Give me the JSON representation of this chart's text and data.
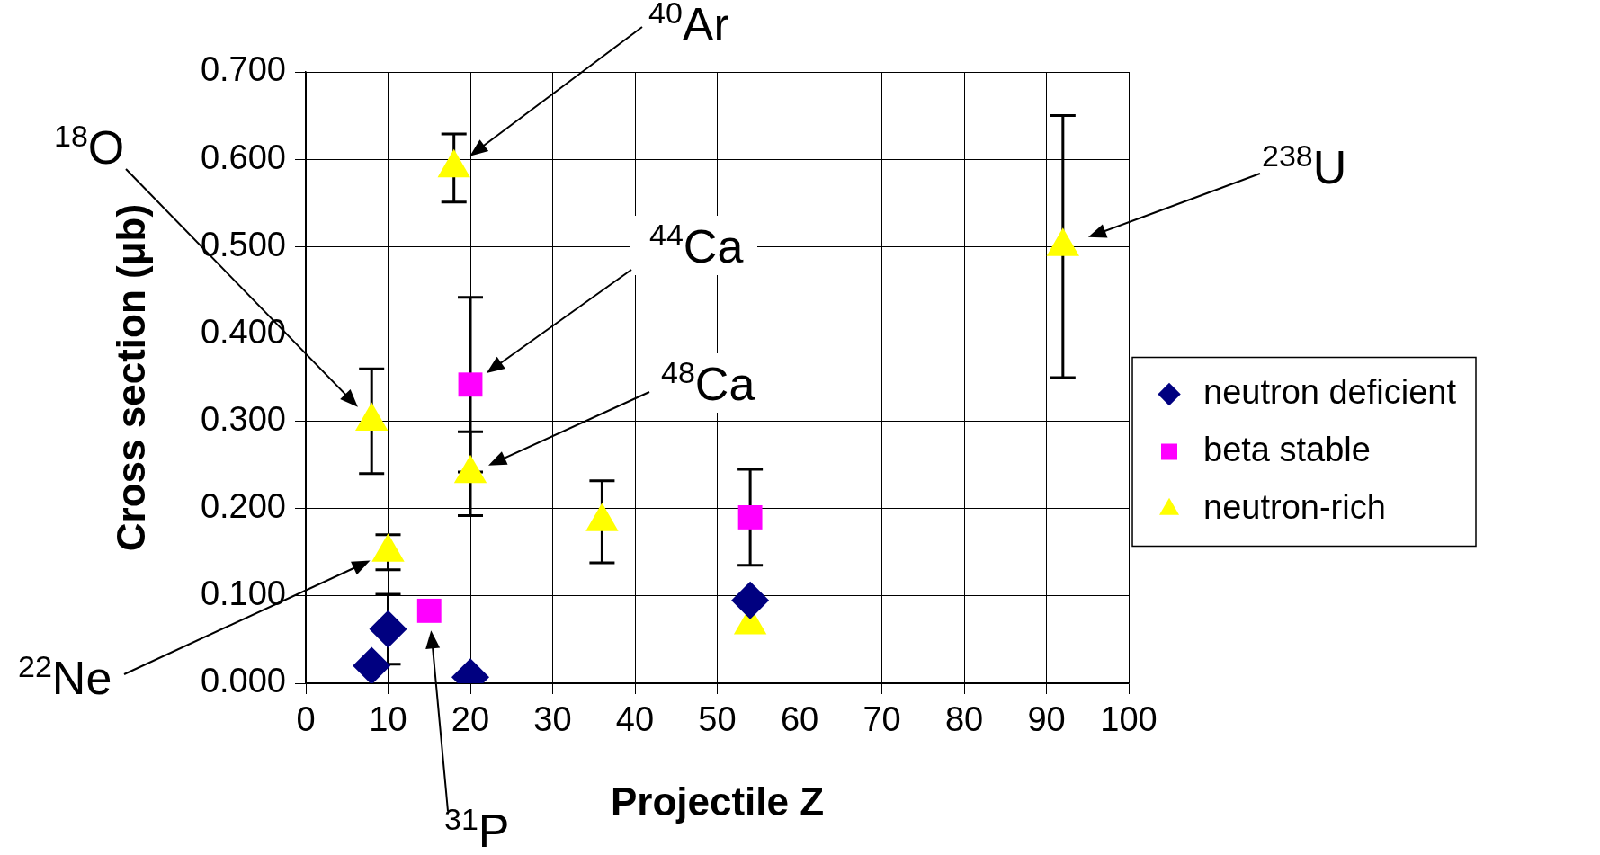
{
  "chart_data": {
    "type": "scatter",
    "xlabel": "Projectile Z",
    "ylabel": "Cross section (μb)",
    "xlim": [
      0,
      100
    ],
    "xticks": [
      0,
      10,
      20,
      30,
      40,
      50,
      60,
      70,
      80,
      90,
      100
    ],
    "ylim": [
      0,
      0.7
    ],
    "yticks": [
      {
        "value": 0,
        "label": "0.000"
      },
      {
        "value": 0.1,
        "label": "0.100"
      },
      {
        "value": 0.2,
        "label": "0.200"
      },
      {
        "value": 0.3,
        "label": "0.300"
      },
      {
        "value": 0.4,
        "label": "0.400"
      },
      {
        "value": 0.5,
        "label": "0.500"
      },
      {
        "value": 0.6,
        "label": "0.600"
      },
      {
        "value": 0.7,
        "label": "0.700"
      }
    ],
    "grid": true,
    "legend": "right",
    "series": [
      {
        "name": "neutron deficient",
        "color": "#000080",
        "marker": "diamond",
        "x": [
          8,
          10,
          20,
          54
        ],
        "values": [
          0.02,
          0.062,
          0.007,
          0.095
        ],
        "errors": [
          null,
          0.04,
          null,
          null
        ]
      },
      {
        "name": "beta stable",
        "color": "#ff00ff",
        "marker": "square",
        "x": [
          15,
          20,
          54
        ],
        "values": [
          0.083,
          0.342,
          0.19
        ],
        "errors": [
          null,
          0.1,
          0.055
        ]
      },
      {
        "name": "neutron-rich",
        "color": "#ffff00",
        "marker": "triangle",
        "x": [
          8,
          10,
          18,
          20,
          36,
          54,
          92
        ],
        "values": [
          0.3,
          0.15,
          0.59,
          0.24,
          0.185,
          0.067,
          0.5
        ],
        "errors": [
          0.06,
          0.02,
          0.039,
          0.048,
          0.047,
          null,
          0.15
        ]
      }
    ],
    "annotations": [
      "$^{40}$Ar",
      "$^{18}$O",
      "$^{238}$U",
      "$^{44}$Ca",
      "$^{48}$Ca",
      "$^{22}$Ne",
      "$^{31}$P"
    ]
  }
}
